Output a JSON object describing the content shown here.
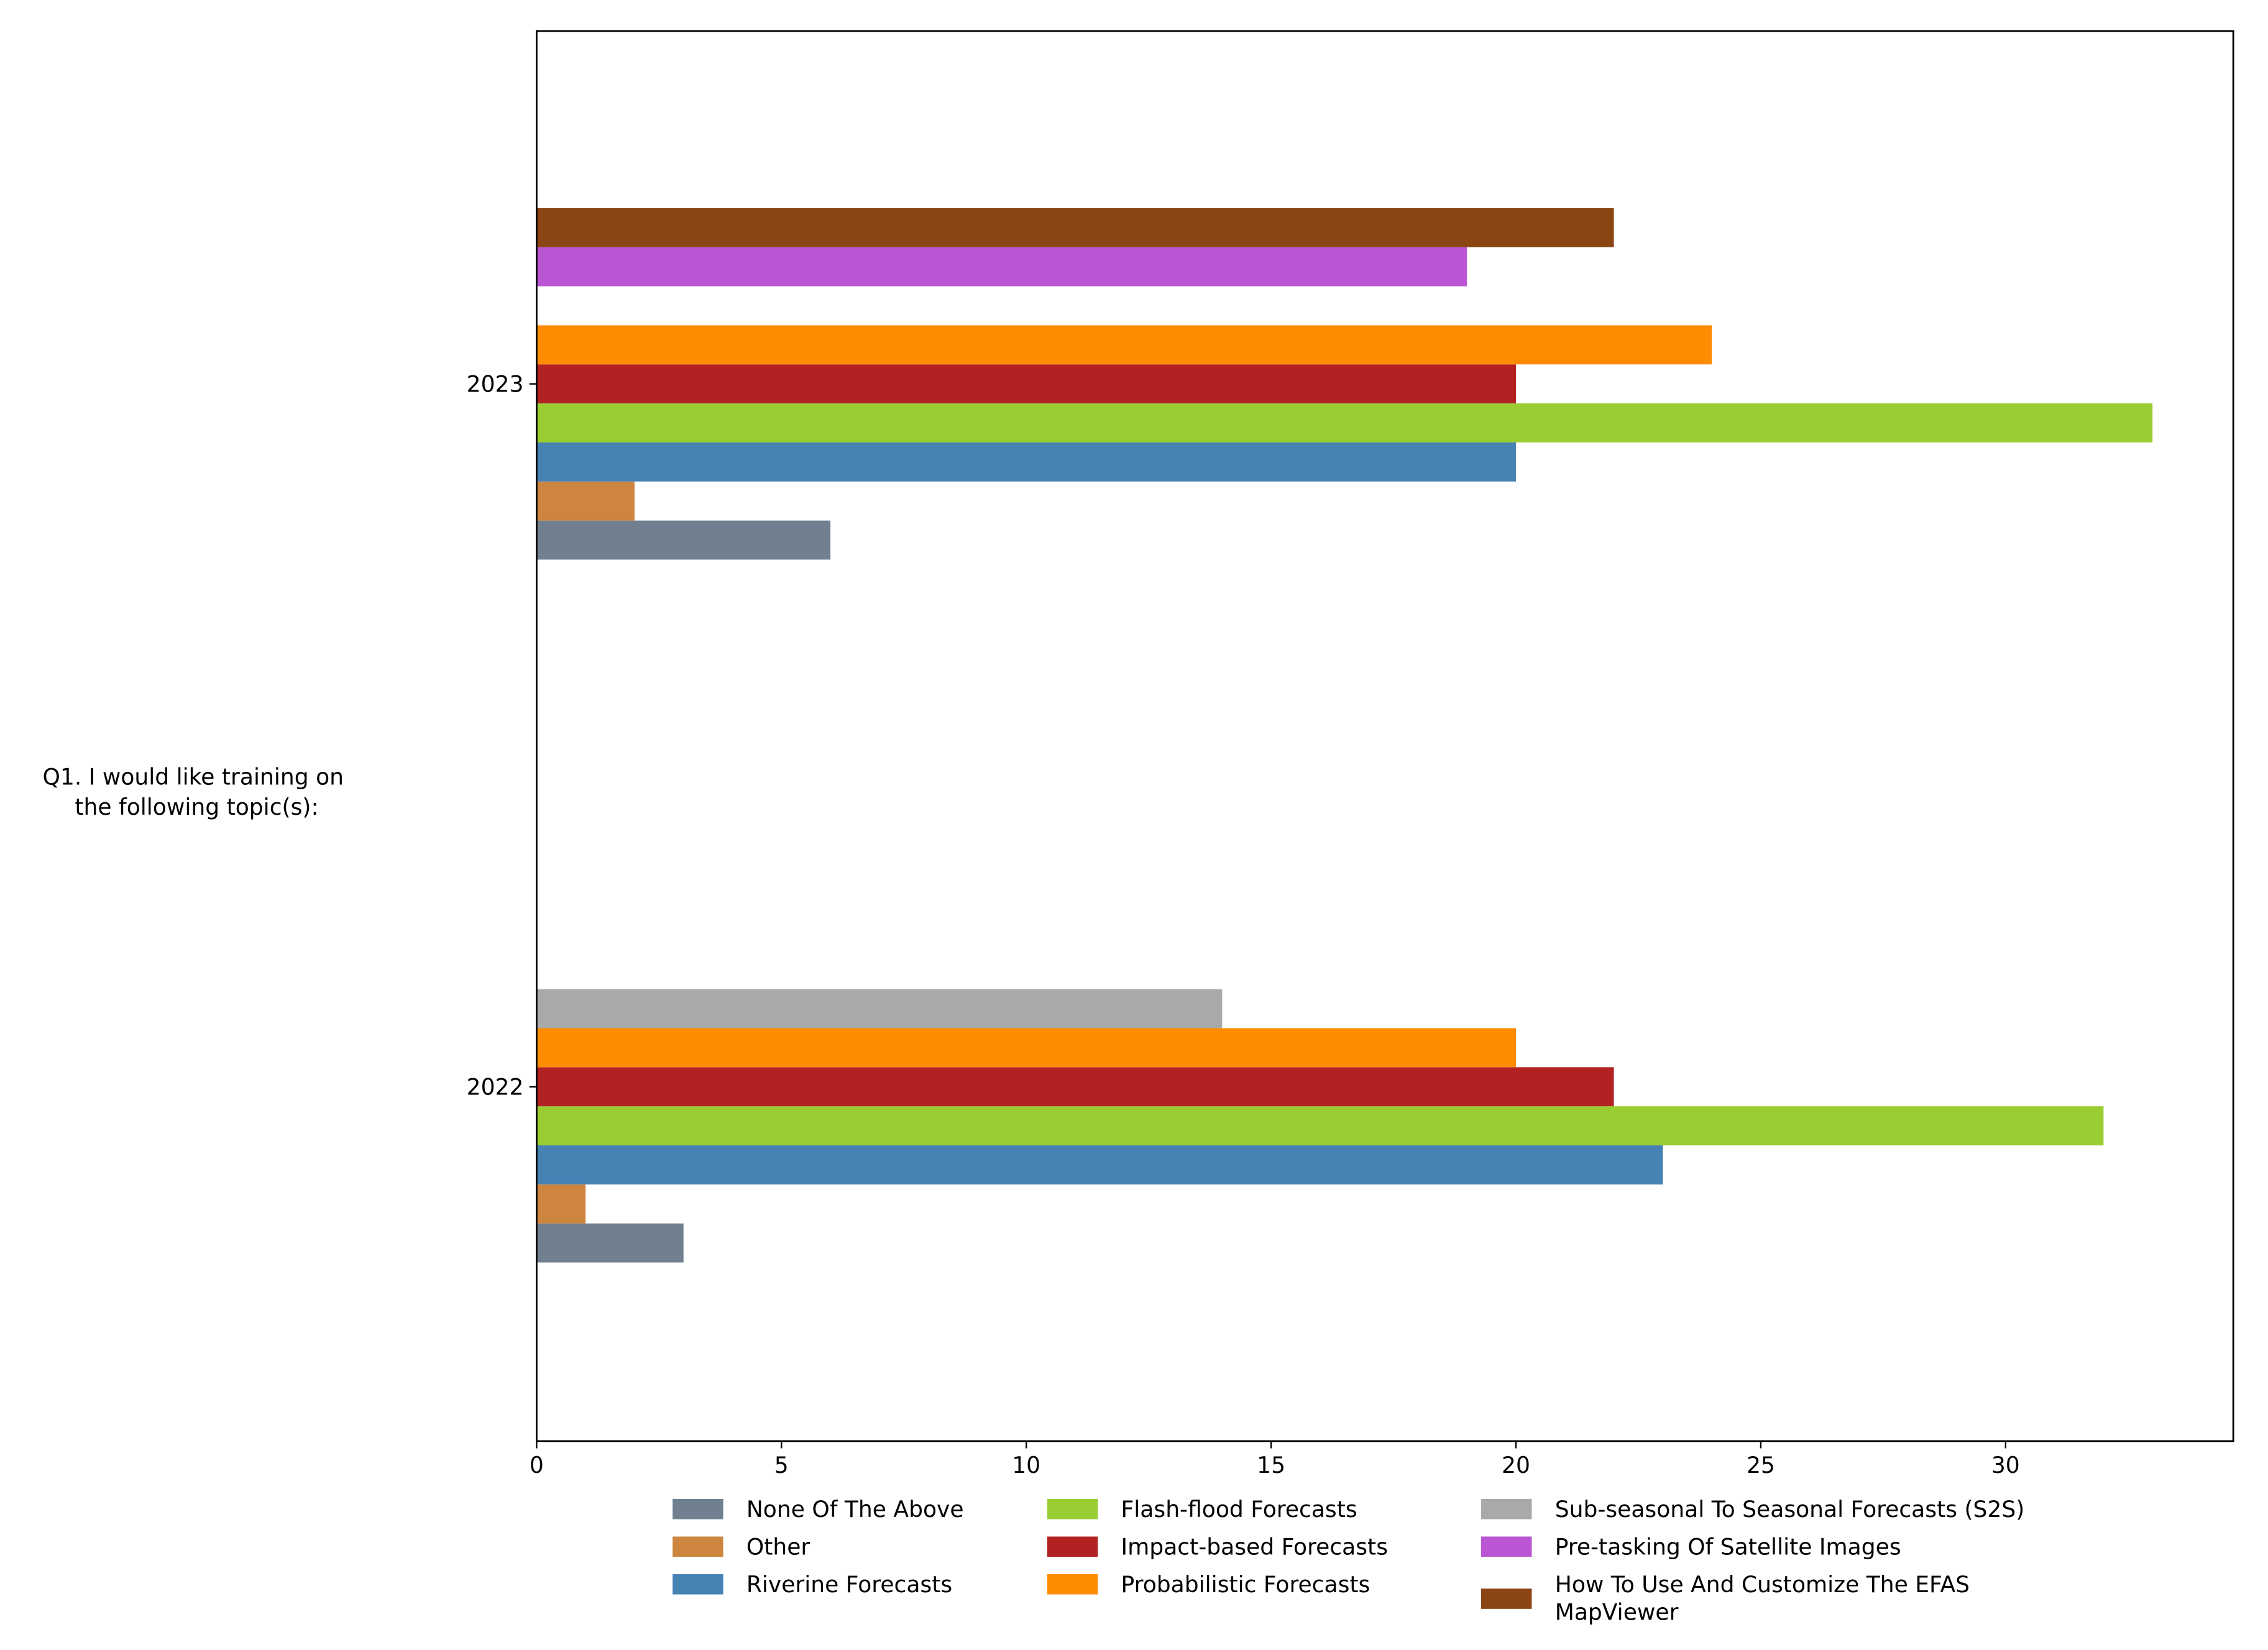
{
  "chart_data": {
    "type": "bar",
    "orientation": "horizontal",
    "title": "",
    "ylabel": "Q1. I would like training on\nthe following topic(s):",
    "ylabel_lines": [
      "Q1. I would like training on",
      "the following topic(s):"
    ],
    "xlabel": "",
    "categories": [
      "2022",
      "2023"
    ],
    "xlim": [
      0,
      34.65
    ],
    "xticks": [
      0,
      5,
      10,
      15,
      20,
      25,
      30
    ],
    "grid": false,
    "legend_position": "bottom-center",
    "series": [
      {
        "name": "None Of The Above",
        "color": "#708090",
        "values": [
          3,
          6
        ]
      },
      {
        "name": "Other",
        "color": "#cd853f",
        "values": [
          1,
          2
        ]
      },
      {
        "name": "Riverine Forecasts",
        "color": "#4682b4",
        "values": [
          23,
          20
        ]
      },
      {
        "name": "Flash-flood Forecasts",
        "color": "#9acd32",
        "values": [
          32,
          33
        ]
      },
      {
        "name": "Impact-based Forecasts",
        "color": "#b22222",
        "values": [
          22,
          20
        ]
      },
      {
        "name": "Probabilistic Forecasts",
        "color": "#ff8c00",
        "values": [
          20,
          24
        ]
      },
      {
        "name": "Sub-seasonal To Seasonal Forecasts (S2S)",
        "color": "#a9a9a9",
        "values": [
          14,
          null
        ]
      },
      {
        "name": "Pre-tasking Of Satellite Images",
        "color": "#ba55d3",
        "values": [
          null,
          19
        ]
      },
      {
        "name": "How To Use And Customize The EFAS MapViewer",
        "color": "#8b4513",
        "values": [
          null,
          22
        ]
      }
    ],
    "legend_labels": [
      [
        "None Of The Above"
      ],
      [
        "Other"
      ],
      [
        "Riverine Forecasts"
      ],
      [
        "Flash-flood Forecasts"
      ],
      [
        "Impact-based Forecasts"
      ],
      [
        "Probabilistic Forecasts"
      ],
      [
        "Sub-seasonal To Seasonal Forecasts (S2S)"
      ],
      [
        "Pre-tasking Of Satellite Images"
      ],
      [
        "How To Use And Customize The EFAS",
        "MapViewer"
      ]
    ]
  }
}
